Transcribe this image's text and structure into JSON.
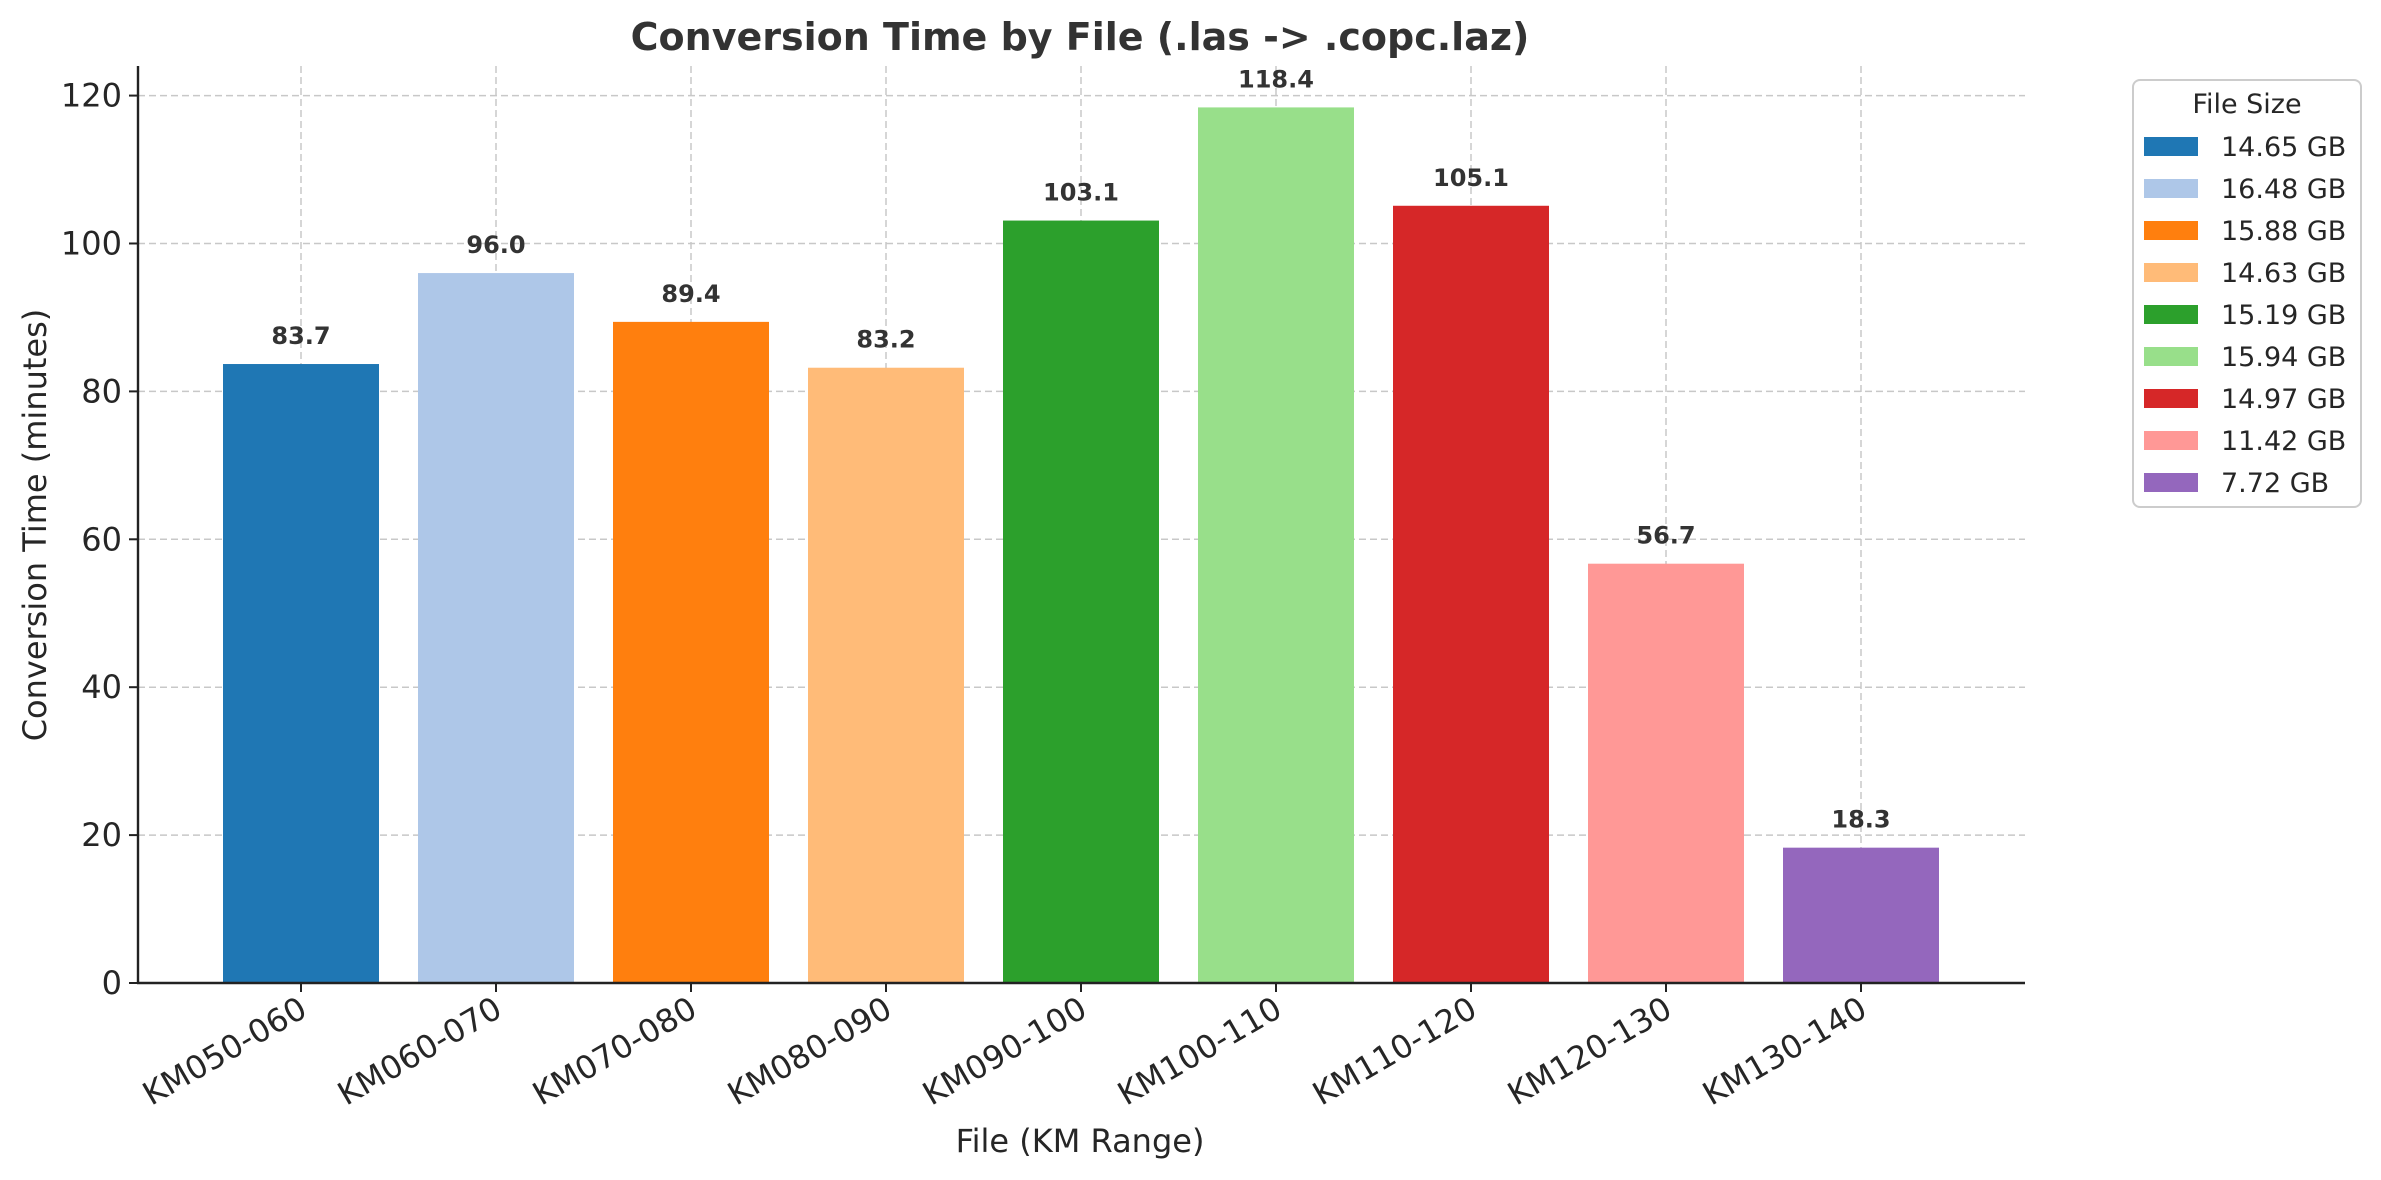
{
  "chart_data": {
    "type": "bar",
    "title": "Conversion Time by File (.las -> .copc.laz)",
    "xlabel": "File (KM Range)",
    "ylabel": "Conversion Time (minutes)",
    "ylim": [
      0,
      124
    ],
    "yticks": [
      0,
      20,
      40,
      60,
      80,
      100,
      120
    ],
    "grid": true,
    "legend": {
      "title": "File Size",
      "placement": "outside-top-right"
    },
    "categories": [
      "KM050-060",
      "KM060-070",
      "KM070-080",
      "KM080-090",
      "KM090-100",
      "KM100-110",
      "KM110-120",
      "KM120-130",
      "KM130-140"
    ],
    "values": [
      83.7,
      96.0,
      89.4,
      83.2,
      103.1,
      118.4,
      105.1,
      56.7,
      18.3
    ],
    "value_labels": [
      "83.7",
      "96.0",
      "89.4",
      "83.2",
      "103.1",
      "118.4",
      "105.1",
      "56.7",
      "18.3"
    ],
    "file_sizes": [
      "14.65 GB",
      "16.48 GB",
      "15.88 GB",
      "14.63 GB",
      "15.19 GB",
      "15.94 GB",
      "14.97 GB",
      "11.42 GB",
      "7.72 GB"
    ],
    "colors": [
      "#1f77b4",
      "#aec7e8",
      "#ff7f0e",
      "#ffbb78",
      "#2ca02c",
      "#98df8a",
      "#d62728",
      "#ff9896",
      "#9467bd"
    ]
  }
}
